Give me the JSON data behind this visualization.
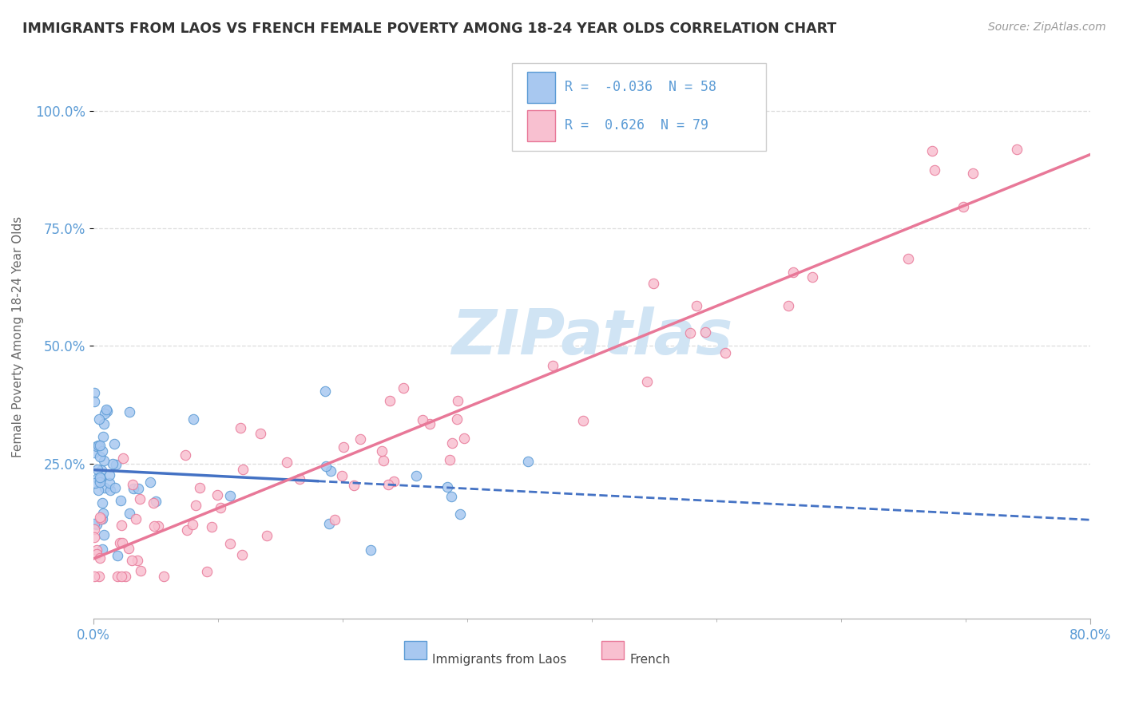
{
  "title": "IMMIGRANTS FROM LAOS VS FRENCH FEMALE POVERTY AMONG 18-24 YEAR OLDS CORRELATION CHART",
  "source": "Source: ZipAtlas.com",
  "ylabel_labels": [
    "25.0%",
    "50.0%",
    "75.0%",
    "100.0%"
  ],
  "ylabel_values": [
    0.25,
    0.5,
    0.75,
    1.0
  ],
  "ylabel_text": "Female Poverty Among 18-24 Year Olds",
  "legend_label1": "Immigrants from Laos",
  "legend_label2": "French",
  "R1": -0.036,
  "N1": 58,
  "R2": 0.626,
  "N2": 79,
  "color_blue_fill": "#A8C8F0",
  "color_blue_edge": "#5B9BD5",
  "color_pink_fill": "#F8C0D0",
  "color_pink_edge": "#E87898",
  "color_blue_line": "#4472C4",
  "color_pink_line": "#E87898",
  "watermark_color": "#D0E4F4",
  "xlim": [
    0.0,
    0.8
  ],
  "ylim": [
    -0.08,
    1.12
  ],
  "grid_color": "#DDDDDD",
  "axis_color": "#AAAAAA",
  "tick_label_color": "#5B9BD5",
  "title_color": "#333333",
  "source_color": "#999999",
  "ylabel_color": "#666666"
}
